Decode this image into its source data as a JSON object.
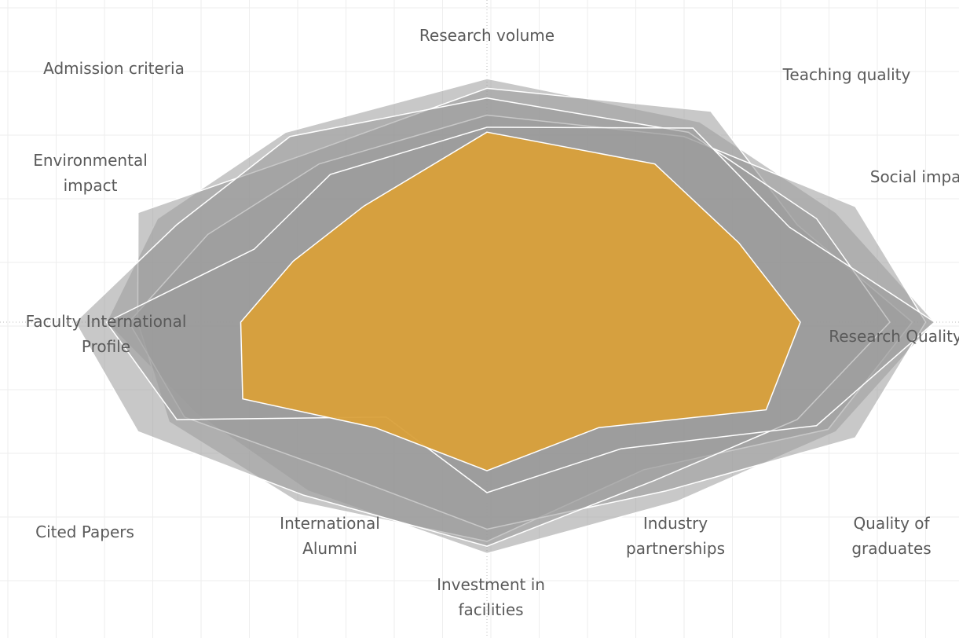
{
  "chart_data": {
    "type": "radar",
    "categories": [
      "Research volume",
      "Teaching quality",
      "Social impact",
      "Research Quality",
      "Quality of graduates",
      "Industry partnerships",
      "Investment in facilities",
      "International Alumni",
      "Cited Papers",
      "Faculty International Profile",
      "Environmental impact",
      "Admission criteria"
    ],
    "rlim": [
      0,
      100
    ],
    "series": [
      {
        "color": "#9a9a9a",
        "values": [
          100,
          95,
          90,
          100,
          90,
          85,
          95,
          80,
          75,
          85,
          85,
          90
        ]
      },
      {
        "color": "#9a9a9a",
        "values": [
          96,
          100,
          80,
          95,
          88,
          70,
          90,
          85,
          82,
          78,
          90,
          80
        ]
      },
      {
        "color": "#9a9a9a",
        "values": [
          85,
          88,
          95,
          98,
          95,
          80,
          85,
          70,
          78,
          80,
          72,
          75
        ]
      },
      {
        "color": "#9a9a9a",
        "values": [
          92,
          90,
          85,
          90,
          80,
          75,
          92,
          82,
          90,
          92,
          80,
          88
        ]
      },
      {
        "color": "#9a9a9a",
        "values": [
          80,
          92,
          78,
          100,
          85,
          60,
          70,
          45,
          80,
          85,
          60,
          70
        ]
      },
      {
        "color": "#d9a03a",
        "values": [
          78,
          75,
          65,
          70,
          72,
          50,
          61,
          50,
          63,
          55,
          50,
          55
        ]
      }
    ]
  }
}
